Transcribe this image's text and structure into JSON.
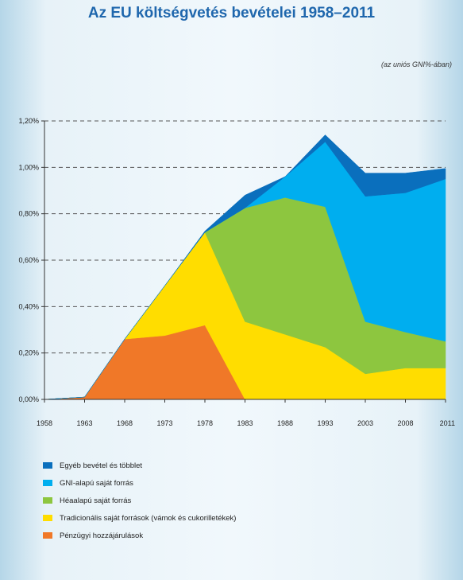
{
  "chart_data": {
    "type": "area",
    "title": "Az EU költségvetés bevételei 1958–2011",
    "subtitle": "(az uniós GNI%-ában)",
    "x": [
      "1958",
      "1963",
      "1968",
      "1973",
      "1978",
      "1983",
      "1988",
      "1993",
      "2003",
      "2008",
      "2011"
    ],
    "yticks": [
      "0,00%",
      "0,20%",
      "0,40%",
      "0,60%",
      "0,80%",
      "1,00%",
      "1,20%"
    ],
    "ylim": [
      0,
      1.2
    ],
    "grid": "dashed horizontal",
    "legend_position": "bottom",
    "series": [
      {
        "name": "Pénzügyi hozzájárulások",
        "color": "#f07828",
        "values": [
          0,
          0.01,
          0.26,
          0.275,
          0.32,
          0,
          0,
          0,
          0,
          0,
          0
        ]
      },
      {
        "name": "Tradicionális saját források (vámok és cukorilletékek)",
        "color": "#ffdd00",
        "values": [
          0,
          0,
          0,
          0.215,
          0.4,
          0.335,
          0.28,
          0.225,
          0.11,
          0.135,
          0.135
        ]
      },
      {
        "name": "Héaalapú saját forrás",
        "color": "#8dc63f",
        "values": [
          0,
          0,
          0,
          0,
          0,
          0.49,
          0.59,
          0.605,
          0.225,
          0.155,
          0.115
        ]
      },
      {
        "name": "GNI-alapú saját forrás",
        "color": "#00aeef",
        "values": [
          0,
          0,
          0,
          0,
          0,
          0,
          0.09,
          0.28,
          0.54,
          0.6,
          0.7
        ]
      },
      {
        "name": "Egyéb bevétel és többlet",
        "color": "#0a6fbd",
        "values": [
          0,
          0,
          0,
          0,
          0.005,
          0.055,
          0,
          0.03,
          0.1,
          0.085,
          0.045
        ]
      }
    ],
    "legend_order": [
      "Egyéb bevétel és többlet",
      "GNI-alapú saját forrás",
      "Héaalapú saját forrás",
      "Tradicionális saját források (vámok és cukorilletékek)",
      "Pénzügyi hozzájárulások"
    ]
  }
}
